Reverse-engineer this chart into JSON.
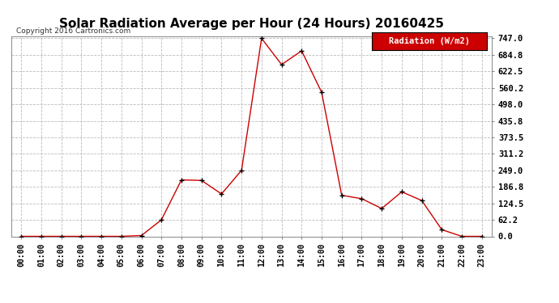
{
  "title": "Solar Radiation Average per Hour (24 Hours) 20160425",
  "copyright_text": "Copyright 2016 Cartronics.com",
  "legend_label": "Radiation (W/m2)",
  "hours": [
    "00:00",
    "01:00",
    "02:00",
    "03:00",
    "04:00",
    "05:00",
    "06:00",
    "07:00",
    "08:00",
    "09:00",
    "10:00",
    "11:00",
    "12:00",
    "13:00",
    "14:00",
    "15:00",
    "16:00",
    "17:00",
    "18:00",
    "19:00",
    "20:00",
    "21:00",
    "22:00",
    "23:00"
  ],
  "values": [
    0.0,
    0.0,
    0.0,
    0.0,
    0.0,
    0.0,
    3.0,
    62.2,
    213.0,
    211.0,
    160.0,
    249.0,
    747.0,
    648.0,
    700.0,
    543.0,
    155.0,
    142.0,
    105.0,
    168.0,
    135.0,
    25.0,
    0.0,
    0.0
  ],
  "line_color": "#cc0000",
  "marker_color": "#000000",
  "bg_color": "#ffffff",
  "grid_color": "#bbbbbb",
  "yticks": [
    0.0,
    62.2,
    124.5,
    186.8,
    249.0,
    311.2,
    373.5,
    435.8,
    498.0,
    560.2,
    622.5,
    684.8,
    747.0
  ],
  "ymax": 747.0,
  "ymin": 0.0,
  "title_fontsize": 11,
  "legend_bg": "#cc0000",
  "legend_text_color": "#ffffff"
}
